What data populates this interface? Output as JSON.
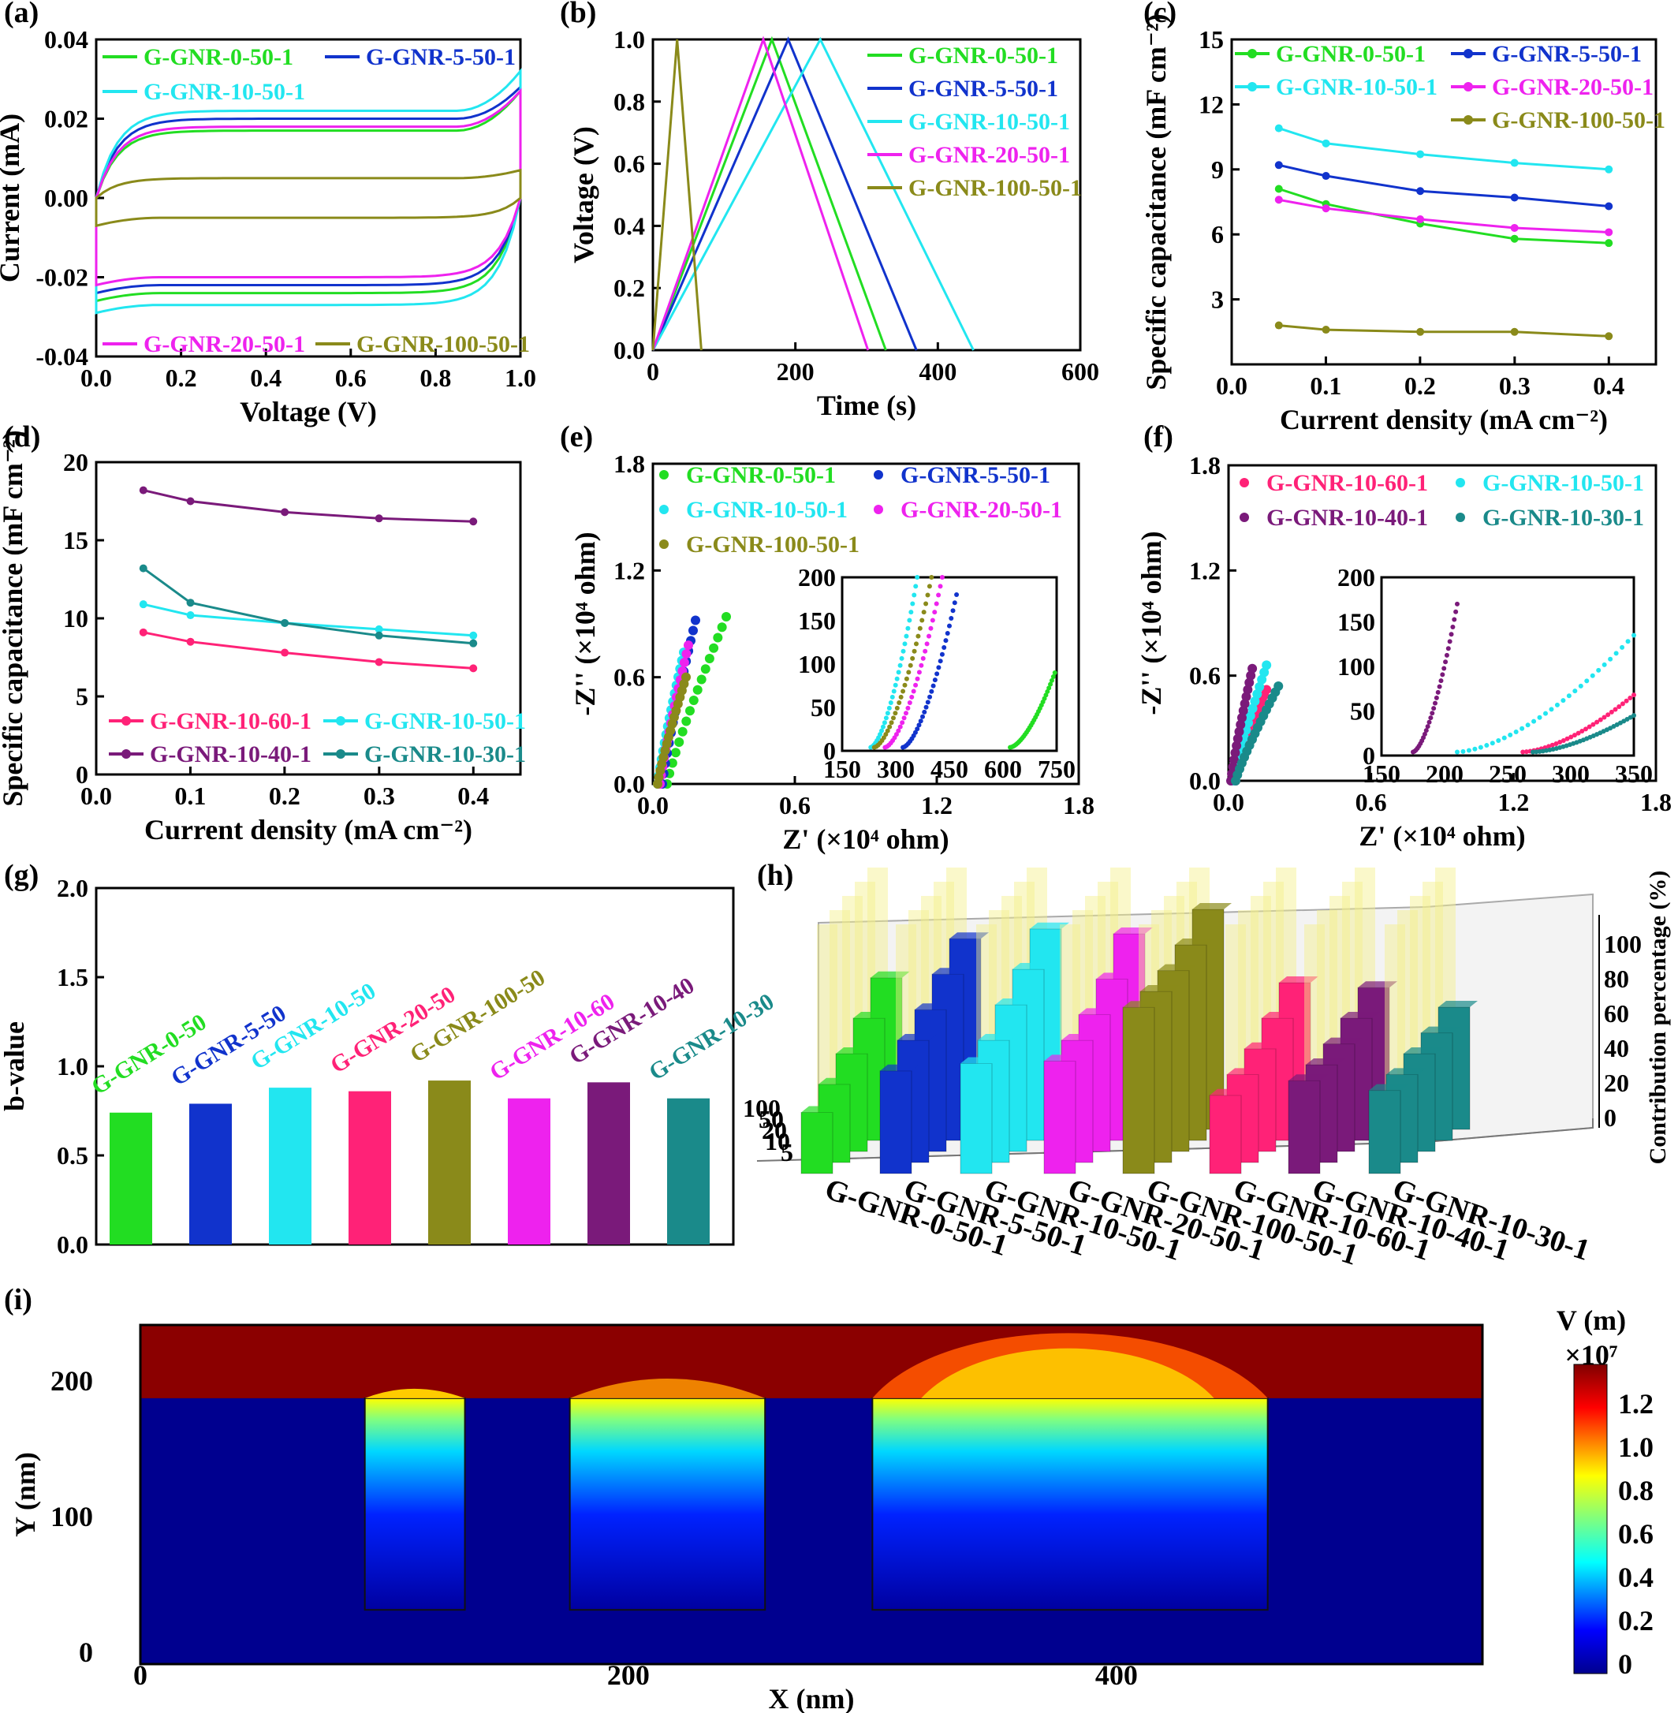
{
  "panel_letters": [
    "(a)",
    "(b)",
    "(c)",
    "(d)",
    "(e)",
    "(f)",
    "(g)",
    "(h)",
    "(i)"
  ],
  "colors": {
    "G-GNR-0-50-1": "#22dd22",
    "G-GNR-5-50-1": "#1133cc",
    "G-GNR-10-50-1": "#22e6f0",
    "G-GNR-20-50-1": "#ee22ee",
    "G-GNR-100-50-1": "#8a8a1a",
    "G-GNR-10-60-1": "#ff2277",
    "G-GNR-10-40-1": "#7a1a7a",
    "G-GNR-10-30-1": "#1a8a8a"
  },
  "chart_data": [
    {
      "id": "a",
      "type": "line",
      "xlabel": "Voltage (V)",
      "ylabel": "Current (mA)",
      "xlim": [
        0.0,
        1.0
      ],
      "ylim": [
        -0.04,
        0.04
      ],
      "xticks": [
        "0.0",
        "0.2",
        "0.4",
        "0.6",
        "0.8",
        "1.0"
      ],
      "yticks": [
        "-0.04",
        "-0.02",
        "0.00",
        "0.02",
        "0.04"
      ],
      "series": [
        {
          "name": "G-GNR-0-50-1",
          "upper": 0.017,
          "lower": -0.024,
          "end": 0.027
        },
        {
          "name": "G-GNR-5-50-1",
          "upper": 0.02,
          "lower": -0.022,
          "end": 0.028
        },
        {
          "name": "G-GNR-10-50-1",
          "upper": 0.022,
          "lower": -0.027,
          "end": 0.032
        },
        {
          "name": "G-GNR-20-50-1",
          "upper": 0.018,
          "lower": -0.02,
          "end": 0.027
        },
        {
          "name": "G-GNR-100-50-1",
          "upper": 0.005,
          "lower": -0.005,
          "end": 0.007
        }
      ]
    },
    {
      "id": "b",
      "type": "line",
      "xlabel": "Time (s)",
      "ylabel": "Voltage (V)",
      "xlim": [
        0,
        600
      ],
      "ylim": [
        0.0,
        1.0
      ],
      "xticks": [
        "0",
        "200",
        "400",
        "600"
      ],
      "yticks": [
        "0.0",
        "0.2",
        "0.4",
        "0.6",
        "0.8",
        "1.0"
      ],
      "series": [
        {
          "name": "G-GNR-0-50-1",
          "x": [
            0,
            167,
            327
          ],
          "y": [
            0,
            1,
            0
          ]
        },
        {
          "name": "G-GNR-5-50-1",
          "x": [
            0,
            190,
            370
          ],
          "y": [
            0,
            1,
            0
          ]
        },
        {
          "name": "G-GNR-10-50-1",
          "x": [
            0,
            235,
            450
          ],
          "y": [
            0,
            1,
            0
          ]
        },
        {
          "name": "G-GNR-20-50-1",
          "x": [
            0,
            155,
            302
          ],
          "y": [
            0,
            1,
            0
          ]
        },
        {
          "name": "G-GNR-100-50-1",
          "x": [
            0,
            34,
            68
          ],
          "y": [
            0,
            1,
            0
          ]
        }
      ]
    },
    {
      "id": "c",
      "type": "line",
      "xlabel": "Current density (mA cm⁻²)",
      "ylabel": "Specific capacitance (mF cm⁻²)",
      "xlim": [
        0.0,
        0.45
      ],
      "ylim": [
        0,
        15
      ],
      "xticks": [
        "0.0",
        "0.1",
        "0.2",
        "0.3",
        "0.4"
      ],
      "yticks": [
        "3",
        "6",
        "9",
        "12",
        "15"
      ],
      "x": [
        0.05,
        0.1,
        0.2,
        0.3,
        0.4
      ],
      "series": [
        {
          "name": "G-GNR-0-50-1",
          "values": [
            8.1,
            7.4,
            6.5,
            5.8,
            5.6
          ]
        },
        {
          "name": "G-GNR-5-50-1",
          "values": [
            9.2,
            8.7,
            8.0,
            7.7,
            7.3
          ]
        },
        {
          "name": "G-GNR-10-50-1",
          "values": [
            10.9,
            10.2,
            9.7,
            9.3,
            9.0
          ]
        },
        {
          "name": "G-GNR-20-50-1",
          "values": [
            7.6,
            7.2,
            6.7,
            6.3,
            6.1
          ]
        },
        {
          "name": "G-GNR-100-50-1",
          "values": [
            1.8,
            1.6,
            1.5,
            1.5,
            1.3
          ]
        }
      ]
    },
    {
      "id": "d",
      "type": "line",
      "xlabel": "Current density (mA cm⁻²)",
      "ylabel": "Specific capacitance (mF cm⁻²)",
      "xlim": [
        0.0,
        0.45
      ],
      "ylim": [
        0,
        20
      ],
      "xticks": [
        "0.0",
        "0.1",
        "0.2",
        "0.3",
        "0.4"
      ],
      "yticks": [
        "0",
        "5",
        "10",
        "15",
        "20"
      ],
      "x": [
        0.05,
        0.1,
        0.2,
        0.3,
        0.4
      ],
      "series": [
        {
          "name": "G-GNR-10-60-1",
          "values": [
            9.1,
            8.5,
            7.8,
            7.2,
            6.8
          ]
        },
        {
          "name": "G-GNR-10-50-1",
          "values": [
            10.9,
            10.2,
            9.7,
            9.3,
            8.9
          ]
        },
        {
          "name": "G-GNR-10-40-1",
          "values": [
            18.2,
            17.5,
            16.8,
            16.4,
            16.2
          ]
        },
        {
          "name": "G-GNR-10-30-1",
          "values": [
            13.2,
            11.0,
            9.7,
            8.9,
            8.4
          ]
        }
      ]
    },
    {
      "id": "e",
      "type": "scatter",
      "xlabel": "Z' (×10⁴ ohm)",
      "ylabel": "-Z'' (×10⁴ ohm)",
      "xlim": [
        0.0,
        1.8
      ],
      "ylim": [
        0.0,
        1.8
      ],
      "xticks": [
        "0.0",
        "0.6",
        "1.2",
        "1.8"
      ],
      "yticks": [
        "0.0",
        "0.6",
        "1.2",
        "1.8"
      ],
      "inset": {
        "xticks": [
          "150",
          "300",
          "450",
          "600",
          "750"
        ],
        "yticks": [
          "0",
          "50",
          "100",
          "150",
          "200"
        ],
        "xlim": [
          150,
          750
        ],
        "ylim": [
          0,
          200
        ]
      },
      "series": [
        {
          "name": "G-GNR-0-50-1",
          "start": 0.06,
          "end": [
            0.31,
            0.94
          ],
          "inset_start": 620,
          "inset_end": [
            745,
            90
          ]
        },
        {
          "name": "G-GNR-5-50-1",
          "start": 0.04,
          "end": [
            0.18,
            0.92
          ],
          "inset_start": 320,
          "inset_end": [
            470,
            180
          ]
        },
        {
          "name": "G-GNR-10-50-1",
          "start": 0.02,
          "end": [
            0.13,
            0.74
          ],
          "inset_start": 230,
          "inset_end": [
            360,
            200
          ]
        },
        {
          "name": "G-GNR-20-50-1",
          "start": 0.03,
          "end": [
            0.15,
            0.78
          ],
          "inset_start": 270,
          "inset_end": [
            430,
            200
          ]
        },
        {
          "name": "G-GNR-100-50-1",
          "start": 0.02,
          "end": [
            0.14,
            0.6
          ],
          "inset_start": 240,
          "inset_end": [
            400,
            200
          ]
        }
      ]
    },
    {
      "id": "f",
      "type": "scatter",
      "xlabel": "Z' (×10⁴ ohm)",
      "ylabel": "-Z'' (×10⁴ ohm)",
      "xlim": [
        0.0,
        1.8
      ],
      "ylim": [
        0.0,
        1.8
      ],
      "xticks": [
        "0.0",
        "0.6",
        "1.2",
        "1.8"
      ],
      "yticks": [
        "0.0",
        "0.6",
        "1.2",
        "1.8"
      ],
      "inset": {
        "xticks": [
          "150",
          "200",
          "250",
          "300",
          "350"
        ],
        "yticks": [
          "0",
          "50",
          "100",
          "150",
          "200"
        ],
        "xlim": [
          150,
          350
        ],
        "ylim": [
          0,
          200
        ]
      },
      "series": [
        {
          "name": "G-GNR-10-60-1",
          "start": 0.03,
          "end": [
            0.16,
            0.52
          ],
          "inset_start": 262,
          "inset_end": [
            350,
            68
          ]
        },
        {
          "name": "G-GNR-10-50-1",
          "start": 0.02,
          "end": [
            0.16,
            0.66
          ],
          "inset_start": 210,
          "inset_end": [
            350,
            135
          ]
        },
        {
          "name": "G-GNR-10-40-1",
          "start": 0.01,
          "end": [
            0.1,
            0.64
          ],
          "inset_start": 175,
          "inset_end": [
            210,
            170
          ]
        },
        {
          "name": "G-GNR-10-30-1",
          "start": 0.03,
          "end": [
            0.21,
            0.54
          ],
          "inset_start": 270,
          "inset_end": [
            350,
            45
          ]
        }
      ]
    },
    {
      "id": "g",
      "type": "bar",
      "xlabel": "",
      "ylabel": "b-value",
      "ylim": [
        0.0,
        2.0
      ],
      "yticks": [
        "0.0",
        "0.5",
        "1.0",
        "1.5",
        "2.0"
      ],
      "categories": [
        "G-GNR-0-50",
        "G-GNR-5-50",
        "G-GNR-10-50",
        "G-GNR-20-50",
        "G-GNR-100-50",
        "G-GNR-10-60",
        "G-GNR-10-40",
        "G-GNR-10-30"
      ],
      "values": [
        0.74,
        0.79,
        0.88,
        0.86,
        0.92,
        0.82,
        0.91,
        0.82
      ]
    },
    {
      "id": "h",
      "type": "bar",
      "zlabel": "Contribution percentage (%)",
      "zticks": [
        "0",
        "20",
        "40",
        "60",
        "80",
        "100"
      ],
      "side_ticks": [
        "100",
        "50",
        "20",
        "10",
        "5"
      ],
      "categories": [
        "G-GNR-0-50-1",
        "G-GNR-5-50-1",
        "G-GNR-10-50-1",
        "G-GNR-20-50-1",
        "G-GNR-100-50-1",
        "G-GNR-10-60-1",
        "G-GNR-10-40-1",
        "G-GNR-10-30-1"
      ],
      "values": [
        [
          62,
          50,
          40,
          32,
          25
        ],
        [
          78,
          68,
          58,
          50,
          42
        ],
        [
          82,
          70,
          60,
          50,
          45
        ],
        [
          80,
          66,
          56,
          50,
          46
        ],
        [
          90,
          80,
          74,
          70,
          68
        ],
        [
          60,
          50,
          42,
          36,
          32
        ],
        [
          58,
          50,
          44,
          40,
          38
        ],
        [
          50,
          44,
          40,
          36,
          34
        ]
      ]
    },
    {
      "id": "i",
      "type": "heatmap",
      "xlabel": "X (nm)",
      "ylabel": "Y (nm)",
      "xlim": [
        0,
        550
      ],
      "ylim": [
        -10,
        240
      ],
      "xticks": [
        "0",
        "200",
        "400"
      ],
      "yticks": [
        "0",
        "100",
        "200"
      ],
      "colorbar": {
        "title": "V (m)",
        "scale": "×10⁷",
        "ticks": [
          "0",
          "0.2",
          "0.4",
          "0.6",
          "0.8",
          "1.0",
          "1.2"
        ]
      }
    }
  ]
}
